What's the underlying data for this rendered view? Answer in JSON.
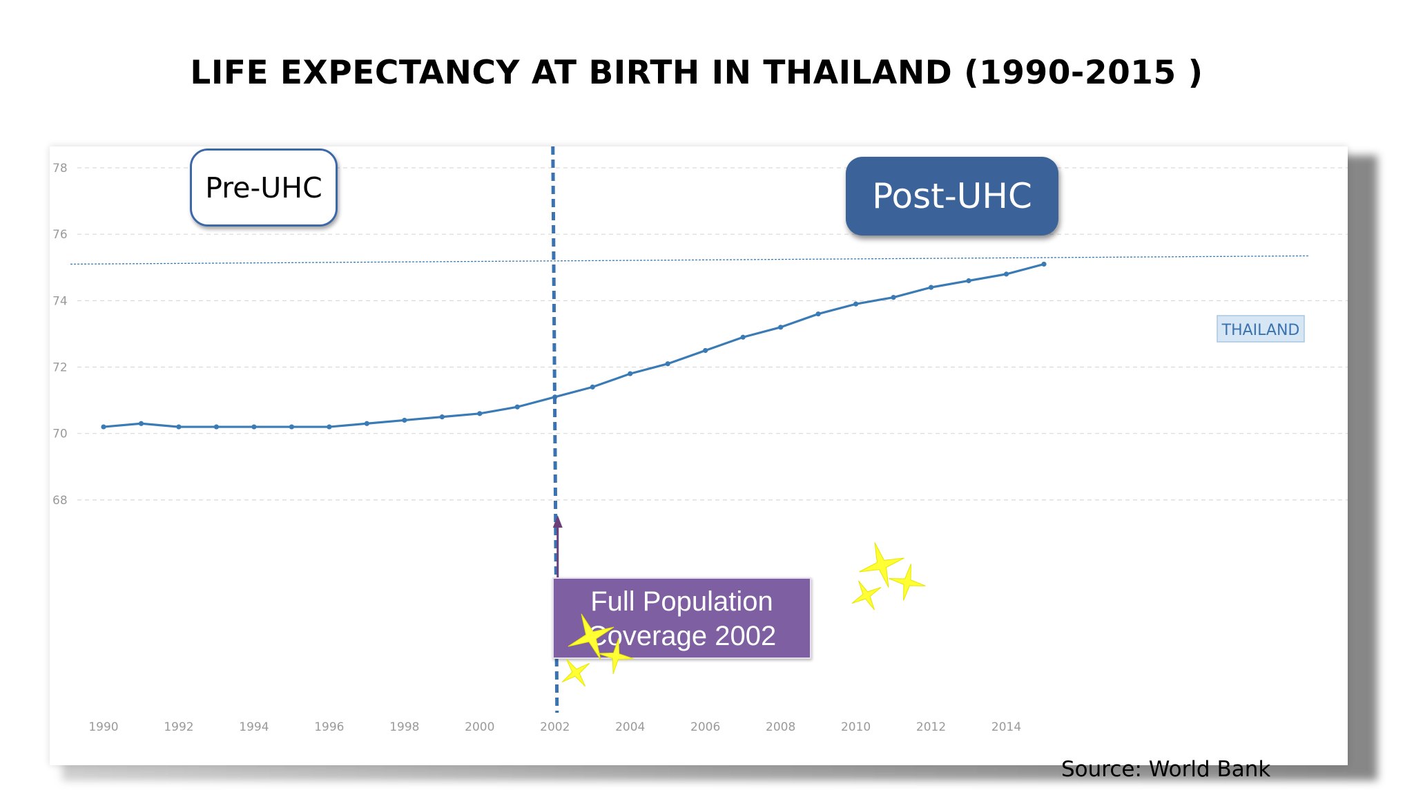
{
  "title": "LIFE EXPECTANCY AT BIRTH IN THAILAND (1990-2015 )",
  "labels": {
    "pre_uhc": "Pre-UHC",
    "post_uhc": "Post-UHC",
    "coverage_line1": "Full Population",
    "coverage_line2": "Coverage 2002",
    "source": "Source: World Bank"
  },
  "colors": {
    "series": "#3a7bb5",
    "marker_line": "#3a73b0",
    "post_uhc_fill": "#3b6399",
    "coverage_fill": "#7e5fa2",
    "stars": "#ffff33"
  },
  "chart_data": {
    "type": "line",
    "title": "",
    "xlabel": "",
    "ylabel": "",
    "xlim": [
      1990,
      2015
    ],
    "ylim": [
      66.5,
      78
    ],
    "x_ticks": [
      1990,
      1992,
      1994,
      1996,
      1998,
      2000,
      2002,
      2004,
      2006,
      2008,
      2010,
      2012,
      2014
    ],
    "y_ticks": [
      68,
      70,
      72,
      74,
      76,
      78
    ],
    "grid": true,
    "reference_line_y": 75.1,
    "vertical_marker_x": 2002,
    "series": [
      {
        "name": "THAILAND",
        "x": [
          1990,
          1991,
          1992,
          1993,
          1994,
          1995,
          1996,
          1997,
          1998,
          1999,
          2000,
          2001,
          2002,
          2003,
          2004,
          2005,
          2006,
          2007,
          2008,
          2009,
          2010,
          2011,
          2012,
          2013,
          2014,
          2015
        ],
        "values": [
          70.2,
          70.3,
          70.2,
          70.2,
          70.2,
          70.2,
          70.2,
          70.3,
          70.4,
          70.5,
          70.6,
          70.8,
          71.1,
          71.4,
          71.8,
          72.1,
          72.5,
          72.9,
          73.2,
          73.6,
          73.9,
          74.1,
          74.4,
          74.6,
          74.8,
          75.1
        ]
      }
    ]
  }
}
